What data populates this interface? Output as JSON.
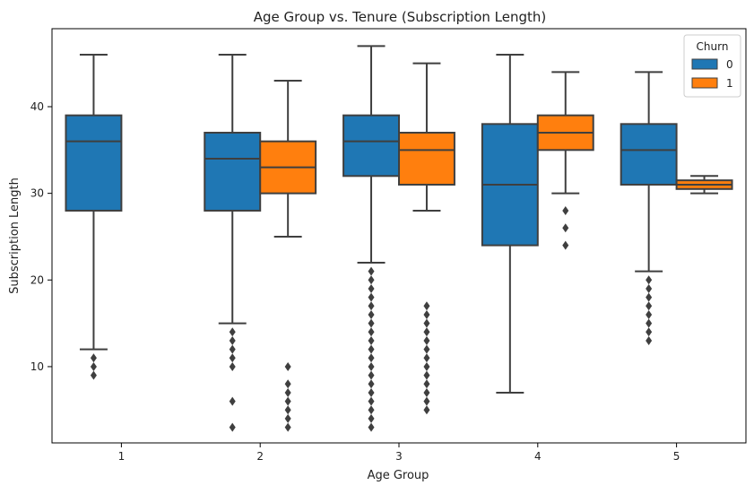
{
  "chart_data": {
    "type": "box",
    "title": "Age Group vs. Tenure (Subscription Length)",
    "xlabel": "Age Group",
    "ylabel": "Subscription Length",
    "categories": [
      "1",
      "2",
      "3",
      "4",
      "5"
    ],
    "ylim": [
      1.2,
      49.0
    ],
    "yticks": [
      10,
      20,
      30,
      40
    ],
    "grid": false,
    "legend": {
      "title": "Churn",
      "placement": "top-right"
    },
    "series": [
      {
        "name": "0",
        "color": "#1f77b4",
        "boxes": [
          {
            "category": "1",
            "whisker_low": 12,
            "q1": 28,
            "median": 36,
            "q3": 39,
            "whisker_high": 46,
            "outliers": [
              9,
              10,
              11
            ]
          },
          {
            "category": "2",
            "whisker_low": 15,
            "q1": 28,
            "median": 34,
            "q3": 37,
            "whisker_high": 46,
            "outliers": [
              3,
              6,
              10,
              11,
              12,
              13,
              14
            ]
          },
          {
            "category": "3",
            "whisker_low": 22,
            "q1": 32,
            "median": 36,
            "q3": 39,
            "whisker_high": 47,
            "outliers": [
              3,
              4,
              5,
              6,
              7,
              8,
              9,
              10,
              11,
              12,
              13,
              14,
              15,
              16,
              17,
              18,
              19,
              20,
              21
            ]
          },
          {
            "category": "4",
            "whisker_low": 7,
            "q1": 24,
            "median": 31,
            "q3": 38,
            "whisker_high": 46,
            "outliers": []
          },
          {
            "category": "5",
            "whisker_low": 21,
            "q1": 31,
            "median": 35,
            "q3": 38,
            "whisker_high": 44,
            "outliers": [
              13,
              14,
              15,
              16,
              17,
              18,
              19,
              20
            ]
          }
        ]
      },
      {
        "name": "1",
        "color": "#ff7f0e",
        "boxes": [
          {
            "category": "2",
            "whisker_low": 25,
            "q1": 30,
            "median": 33,
            "q3": 36,
            "whisker_high": 43,
            "outliers": [
              3,
              4,
              5,
              6,
              7,
              8,
              10
            ]
          },
          {
            "category": "3",
            "whisker_low": 28,
            "q1": 31,
            "median": 35,
            "q3": 37,
            "whisker_high": 45,
            "outliers": [
              5,
              6,
              7,
              8,
              9,
              10,
              11,
              12,
              13,
              14,
              15,
              16,
              17
            ]
          },
          {
            "category": "4",
            "whisker_low": 30,
            "q1": 35,
            "median": 37,
            "q3": 39,
            "whisker_high": 44,
            "outliers": [
              24,
              26,
              28
            ]
          },
          {
            "category": "5",
            "whisker_low": 30,
            "q1": 30.5,
            "median": 31,
            "q3": 31.5,
            "whisker_high": 32,
            "outliers": []
          }
        ]
      }
    ]
  }
}
